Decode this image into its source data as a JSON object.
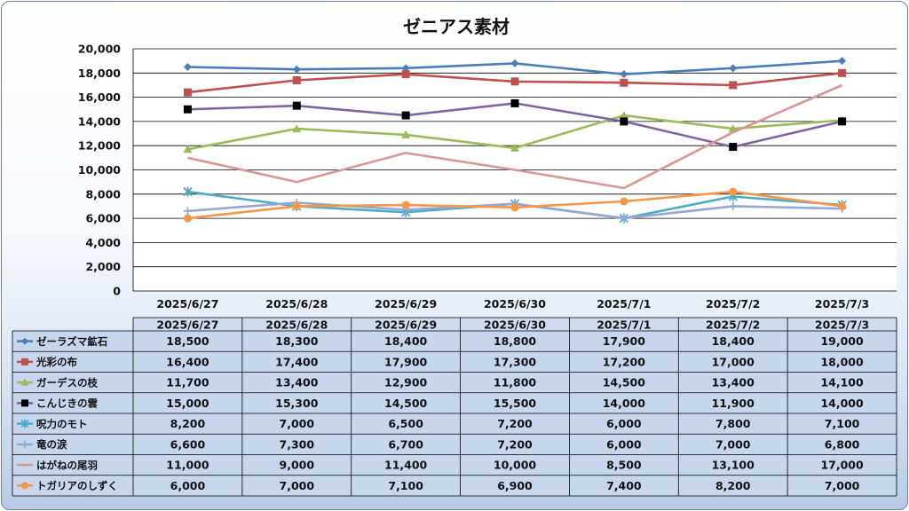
{
  "chart_data": {
    "type": "line",
    "title": "ゼニアス素材",
    "categories": [
      "2025/6/27",
      "2025/6/28",
      "2025/6/29",
      "2025/6/30",
      "2025/7/1",
      "2025/7/2",
      "2025/7/3"
    ],
    "ylim": [
      0,
      20000
    ],
    "yticks": [
      "0",
      "2,000",
      "4,000",
      "6,000",
      "8,000",
      "10,000",
      "12,000",
      "14,000",
      "16,000",
      "18,000",
      "20,000"
    ],
    "grid": true,
    "legend": "data-table",
    "series": [
      {
        "name": "ゼーラズマ鉱石",
        "values": [
          18500,
          18300,
          18400,
          18800,
          17900,
          18400,
          19000
        ],
        "labels": [
          "18,500",
          "18,300",
          "18,400",
          "18,800",
          "17,900",
          "18,400",
          "19,000"
        ],
        "color": "#4a7ebb",
        "marker": "diamond"
      },
      {
        "name": "光彩の布",
        "values": [
          16400,
          17400,
          17900,
          17300,
          17200,
          17000,
          18000
        ],
        "labels": [
          "16,400",
          "17,400",
          "17,900",
          "17,300",
          "17,200",
          "17,000",
          "18,000"
        ],
        "color": "#c0504d",
        "marker": "square"
      },
      {
        "name": "ガーデスの枝",
        "values": [
          11700,
          13400,
          12900,
          11800,
          14500,
          13400,
          14100
        ],
        "labels": [
          "11,700",
          "13,400",
          "12,900",
          "11,800",
          "14,500",
          "13,400",
          "14,100"
        ],
        "color": "#9bbb59",
        "marker": "triangle"
      },
      {
        "name": "こんじきの雲",
        "values": [
          15000,
          15300,
          14500,
          15500,
          14000,
          11900,
          14000
        ],
        "labels": [
          "15,000",
          "15,300",
          "14,500",
          "15,500",
          "14,000",
          "11,900",
          "14,000"
        ],
        "color": "#8064a2",
        "marker": "blacksquare"
      },
      {
        "name": "呪力のモト",
        "values": [
          8200,
          7000,
          6500,
          7200,
          6000,
          7800,
          7100
        ],
        "labels": [
          "8,200",
          "7,000",
          "6,500",
          "7,200",
          "6,000",
          "7,800",
          "7,100"
        ],
        "color": "#4bacc6",
        "marker": "star"
      },
      {
        "name": "竜の涙",
        "values": [
          6600,
          7300,
          6700,
          7200,
          6000,
          7000,
          6800
        ],
        "labels": [
          "6,600",
          "7,300",
          "6,700",
          "7,200",
          "6,000",
          "7,000",
          "6,800"
        ],
        "color": "#95a7d4",
        "marker": "plus"
      },
      {
        "name": "はがねの尾羽",
        "values": [
          11000,
          9000,
          11400,
          10000,
          8500,
          13100,
          17000
        ],
        "labels": [
          "11,000",
          "9,000",
          "11,400",
          "10,000",
          "8,500",
          "13,100",
          "17,000"
        ],
        "color": "#d99694",
        "marker": "none"
      },
      {
        "name": "トガリアのしずく",
        "values": [
          6000,
          7000,
          7100,
          6900,
          7400,
          8200,
          7000
        ],
        "labels": [
          "6,000",
          "7,000",
          "7,100",
          "6,900",
          "7,400",
          "8,200",
          "7,000"
        ],
        "color": "#f79646",
        "marker": "circle"
      }
    ]
  }
}
